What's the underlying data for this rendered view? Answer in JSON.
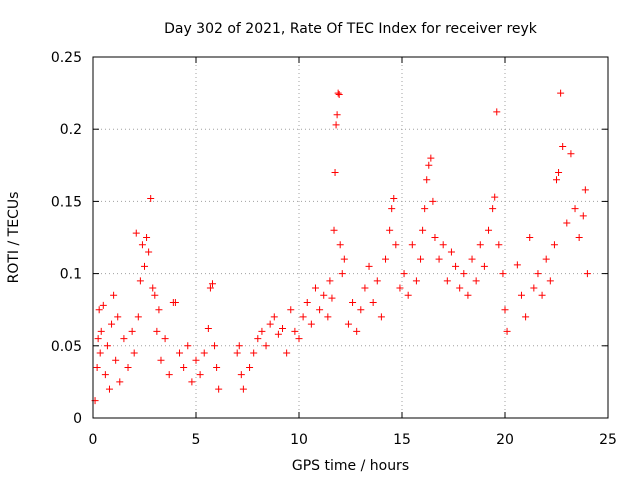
{
  "chart_data": {
    "type": "scatter",
    "title": "Day 302 of 2021, Rate Of TEC Index for receiver reyk",
    "xlabel": "GPS time / hours",
    "ylabel": "ROTI / TECUs",
    "xlim": [
      0,
      25
    ],
    "ylim": [
      0,
      0.25
    ],
    "xticks": [
      0,
      5,
      10,
      15,
      20,
      25
    ],
    "xtick_labels": [
      "0",
      "5",
      "10",
      "15",
      "20",
      "25"
    ],
    "yticks": [
      0,
      0.05,
      0.1,
      0.15,
      0.2,
      0.25
    ],
    "ytick_labels": [
      "0",
      "0.05",
      "0.1",
      "0.15",
      "0.2",
      "0.25"
    ],
    "grid": true,
    "marker": "+",
    "color": "#ff0000",
    "series": [
      {
        "points": [
          [
            0.1,
            0.012
          ],
          [
            0.2,
            0.035
          ],
          [
            0.25,
            0.055
          ],
          [
            0.3,
            0.075
          ],
          [
            0.35,
            0.045
          ],
          [
            0.4,
            0.06
          ],
          [
            0.5,
            0.078
          ],
          [
            0.6,
            0.03
          ],
          [
            0.7,
            0.05
          ],
          [
            0.8,
            0.02
          ],
          [
            0.9,
            0.065
          ],
          [
            1.0,
            0.085
          ],
          [
            1.1,
            0.04
          ],
          [
            1.2,
            0.07
          ],
          [
            1.3,
            0.025
          ],
          [
            1.5,
            0.055
          ],
          [
            1.7,
            0.035
          ],
          [
            1.9,
            0.06
          ],
          [
            2.0,
            0.045
          ],
          [
            2.1,
            0.128
          ],
          [
            2.2,
            0.07
          ],
          [
            2.3,
            0.095
          ],
          [
            2.4,
            0.12
          ],
          [
            2.5,
            0.105
          ],
          [
            2.6,
            0.125
          ],
          [
            2.7,
            0.115
          ],
          [
            2.8,
            0.152
          ],
          [
            2.9,
            0.09
          ],
          [
            3.0,
            0.085
          ],
          [
            3.1,
            0.06
          ],
          [
            3.2,
            0.075
          ],
          [
            3.3,
            0.04
          ],
          [
            3.5,
            0.055
          ],
          [
            3.7,
            0.03
          ],
          [
            3.9,
            0.08
          ],
          [
            4.0,
            0.08
          ],
          [
            4.2,
            0.045
          ],
          [
            4.4,
            0.035
          ],
          [
            4.6,
            0.05
          ],
          [
            4.8,
            0.025
          ],
          [
            5.0,
            0.04
          ],
          [
            5.2,
            0.03
          ],
          [
            5.4,
            0.045
          ],
          [
            5.6,
            0.062
          ],
          [
            5.7,
            0.09
          ],
          [
            5.8,
            0.093
          ],
          [
            5.9,
            0.05
          ],
          [
            6.0,
            0.035
          ],
          [
            6.1,
            0.02
          ],
          [
            7.0,
            0.045
          ],
          [
            7.1,
            0.05
          ],
          [
            7.2,
            0.03
          ],
          [
            7.3,
            0.02
          ],
          [
            7.6,
            0.035
          ],
          [
            7.8,
            0.045
          ],
          [
            8.0,
            0.055
          ],
          [
            8.2,
            0.06
          ],
          [
            8.4,
            0.05
          ],
          [
            8.6,
            0.065
          ],
          [
            8.8,
            0.07
          ],
          [
            9.0,
            0.058
          ],
          [
            9.2,
            0.062
          ],
          [
            9.4,
            0.045
          ],
          [
            9.6,
            0.075
          ],
          [
            9.8,
            0.06
          ],
          [
            10.0,
            0.055
          ],
          [
            10.2,
            0.07
          ],
          [
            10.4,
            0.08
          ],
          [
            10.6,
            0.065
          ],
          [
            10.8,
            0.09
          ],
          [
            11.0,
            0.075
          ],
          [
            11.2,
            0.085
          ],
          [
            11.4,
            0.07
          ],
          [
            11.5,
            0.095
          ],
          [
            11.6,
            0.083
          ],
          [
            11.7,
            0.13
          ],
          [
            11.75,
            0.17
          ],
          [
            11.8,
            0.203
          ],
          [
            11.85,
            0.21
          ],
          [
            11.9,
            0.225
          ],
          [
            11.95,
            0.224
          ],
          [
            12.0,
            0.12
          ],
          [
            12.1,
            0.1
          ],
          [
            12.2,
            0.11
          ],
          [
            12.4,
            0.065
          ],
          [
            12.6,
            0.08
          ],
          [
            12.8,
            0.06
          ],
          [
            13.0,
            0.075
          ],
          [
            13.2,
            0.09
          ],
          [
            13.4,
            0.105
          ],
          [
            13.6,
            0.08
          ],
          [
            13.8,
            0.095
          ],
          [
            14.0,
            0.07
          ],
          [
            14.2,
            0.11
          ],
          [
            14.4,
            0.13
          ],
          [
            14.5,
            0.145
          ],
          [
            14.6,
            0.152
          ],
          [
            14.7,
            0.12
          ],
          [
            14.9,
            0.09
          ],
          [
            15.1,
            0.1
          ],
          [
            15.3,
            0.085
          ],
          [
            15.5,
            0.12
          ],
          [
            15.7,
            0.095
          ],
          [
            15.9,
            0.11
          ],
          [
            16.0,
            0.13
          ],
          [
            16.1,
            0.145
          ],
          [
            16.2,
            0.165
          ],
          [
            16.3,
            0.175
          ],
          [
            16.4,
            0.18
          ],
          [
            16.5,
            0.15
          ],
          [
            16.6,
            0.125
          ],
          [
            16.8,
            0.11
          ],
          [
            17.0,
            0.12
          ],
          [
            17.2,
            0.095
          ],
          [
            17.4,
            0.115
          ],
          [
            17.6,
            0.105
          ],
          [
            17.8,
            0.09
          ],
          [
            18.0,
            0.1
          ],
          [
            18.2,
            0.085
          ],
          [
            18.4,
            0.11
          ],
          [
            18.6,
            0.095
          ],
          [
            18.8,
            0.12
          ],
          [
            19.0,
            0.105
          ],
          [
            19.2,
            0.13
          ],
          [
            19.4,
            0.145
          ],
          [
            19.5,
            0.153
          ],
          [
            19.6,
            0.212
          ],
          [
            19.7,
            0.12
          ],
          [
            19.9,
            0.1
          ],
          [
            20.0,
            0.075
          ],
          [
            20.1,
            0.06
          ],
          [
            20.6,
            0.106
          ],
          [
            20.8,
            0.085
          ],
          [
            21.0,
            0.07
          ],
          [
            21.2,
            0.125
          ],
          [
            21.4,
            0.09
          ],
          [
            21.6,
            0.1
          ],
          [
            21.8,
            0.085
          ],
          [
            22.0,
            0.11
          ],
          [
            22.2,
            0.095
          ],
          [
            22.4,
            0.12
          ],
          [
            22.5,
            0.165
          ],
          [
            22.6,
            0.17
          ],
          [
            22.7,
            0.225
          ],
          [
            22.8,
            0.188
          ],
          [
            23.0,
            0.135
          ],
          [
            23.2,
            0.183
          ],
          [
            23.4,
            0.145
          ],
          [
            23.6,
            0.125
          ],
          [
            23.8,
            0.14
          ],
          [
            23.9,
            0.158
          ],
          [
            24.0,
            0.1
          ]
        ]
      }
    ]
  }
}
